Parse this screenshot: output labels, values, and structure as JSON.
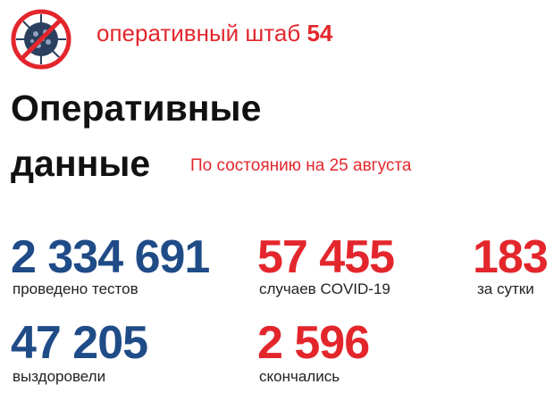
{
  "header": {
    "brand_text": "оперативный штаб",
    "brand_number": "54",
    "logo_icon": "no-virus-icon"
  },
  "title": {
    "line1": "Оперативные",
    "line2": "данные"
  },
  "date": "По состоянию на 25 августа",
  "stats": [
    {
      "value": "2 334 691",
      "label": "проведено тестов",
      "color": "#1f4b87"
    },
    {
      "value": "57 455",
      "label": "случаев COVID-19",
      "color": "#e3262c"
    },
    {
      "value": "183",
      "label": "за сутки",
      "color": "#e3262c"
    },
    {
      "value": "47 205",
      "label": "выздоровели",
      "color": "#1f4b87"
    },
    {
      "value": "2 596",
      "label": "скончались",
      "color": "#e3262c"
    }
  ]
}
